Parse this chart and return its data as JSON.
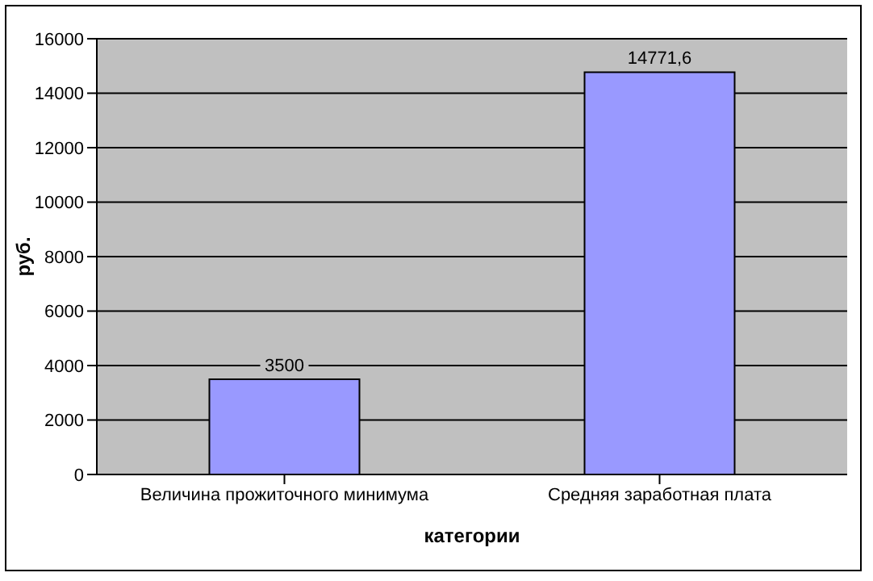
{
  "chart_data": {
    "type": "bar",
    "xlabel": "категории",
    "ylabel": "руб.",
    "categories": [
      "Величина прожиточного минимума",
      "Средняя заработная плата"
    ],
    "values": [
      3500,
      14771.6
    ],
    "value_labels": [
      "3500",
      "14771,6"
    ],
    "color": "#9999ff",
    "ylim": [
      0,
      16000
    ],
    "yticks": [
      0,
      2000,
      4000,
      6000,
      8000,
      10000,
      12000,
      14000,
      16000
    ],
    "grid": "y"
  }
}
